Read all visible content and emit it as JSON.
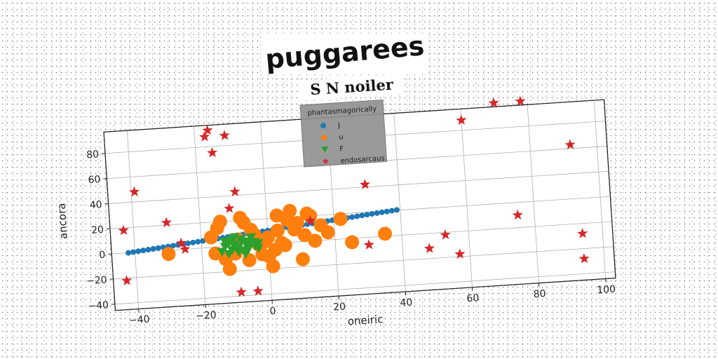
{
  "chart_data": {
    "type": "scatter",
    "title": "puggarees",
    "subtitle": "S N noiler",
    "xlabel": "oneiric",
    "ylabel": "ancora",
    "xlim": [
      -47,
      103
    ],
    "ylim": [
      -45,
      97
    ],
    "xticks": [
      -40,
      -20,
      0,
      20,
      40,
      60,
      80,
      100
    ],
    "yticks": [
      -40,
      -20,
      0,
      20,
      40,
      60,
      80
    ],
    "xtick_labels": [
      "−40",
      "−20",
      "0",
      "20",
      "40",
      "60",
      "80",
      "100"
    ],
    "ytick_labels": [
      "−40",
      "−20",
      "0",
      "20",
      "40",
      "60",
      "80"
    ],
    "grid": true,
    "legend": {
      "title": "phantasmagorically",
      "placement": "top-center"
    },
    "series": [
      {
        "name": "J",
        "marker": "circle",
        "color": "#1f77b4",
        "line": {
          "x_start": -42,
          "x_end": 39,
          "count": 55,
          "slope": 0.25,
          "intercept": 10.5
        }
      },
      {
        "name": "u",
        "marker": "circle",
        "color": "#ff7f0e",
        "x": [
          -30,
          -17,
          -16,
          -14,
          -13,
          -12,
          -9,
          -8,
          -7,
          -6,
          -5,
          -3,
          -2,
          -1,
          0,
          1,
          2,
          3,
          4,
          5,
          6,
          7,
          8,
          9,
          10,
          11,
          12,
          13,
          14,
          16,
          18,
          22,
          25,
          35,
          -15,
          -10,
          -4,
          0,
          3
        ],
        "y": [
          -3,
          8,
          -5,
          20,
          -10,
          -18,
          5,
          22,
          18,
          -12,
          12,
          0,
          -8,
          2,
          5,
          -18,
          -5,
          22,
          0,
          -2,
          18,
          25,
          10,
          15,
          -14,
          5,
          22,
          20,
          0,
          12,
          6,
          16,
          -3,
          2,
          15,
          -6,
          8,
          -10,
          10
        ]
      },
      {
        "name": "F",
        "marker": "triangle",
        "color": "#2ca02c",
        "x": [
          -14,
          -13,
          -12,
          -11,
          -10,
          -9,
          -8,
          -7,
          -6,
          -5,
          -4,
          -3,
          -13,
          -11,
          -9,
          -7,
          -5,
          -3,
          -12,
          -10,
          -8,
          -6,
          -4,
          -10,
          -7
        ],
        "y": [
          -4,
          0,
          2,
          -3,
          1,
          -2,
          3,
          -4,
          0,
          2,
          -1,
          -3,
          4,
          5,
          -5,
          3,
          6,
          1,
          -6,
          -1,
          5,
          -3,
          2,
          7,
          -7
        ]
      },
      {
        "name": "endosarcaus",
        "marker": "star",
        "color": "#d62728",
        "x": [
          -43,
          -39,
          -43,
          -30,
          -26,
          -25,
          -17,
          -16,
          -15,
          -11,
          -11,
          -9,
          -9,
          -4,
          13,
          30,
          30,
          48,
          53,
          57,
          60,
          70,
          78,
          92,
          94,
          94,
          75
        ],
        "y": [
          18,
          48,
          -22,
          22,
          5,
          0,
          88,
          93,
          75,
          88,
          30,
          43,
          -37,
          -37,
          16,
          42,
          -6,
          -12,
          -2,
          -18,
          88,
          100,
          100,
          63,
          -8,
          -28,
          10
        ]
      }
    ]
  }
}
